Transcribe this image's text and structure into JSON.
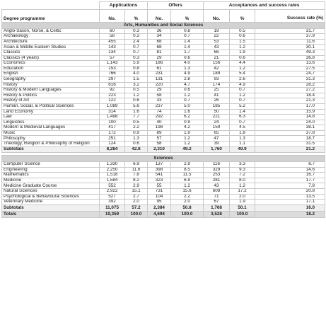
{
  "headers": {
    "group_applications": "Applications",
    "group_offers": "Offers",
    "group_acceptances": "Acceptances and success rates",
    "degree_programme": "Degree programme",
    "no": "No.",
    "pct": "%",
    "success_rate": "Success rate (%)"
  },
  "sections": [
    {
      "title": "Arts, Humanities and Social Sciences",
      "rows": [
        [
          "Anglo-Saxon, Norse, & Celtic",
          "60",
          "0.3",
          "36",
          "0.8",
          "19",
          "0.5",
          "31.7"
        ],
        [
          "Archaeology",
          "58",
          "0.3",
          "34",
          "0.7",
          "22",
          "0.6",
          "37.9"
        ],
        [
          "Architecture",
          "455",
          "2.4",
          "68",
          "1.4",
          "53",
          "1.5",
          "11.6"
        ],
        [
          "Asian & Middle Eastern Studies",
          "143",
          "0.7",
          "68",
          "1.4",
          "43",
          "1.2",
          "30.1"
        ],
        [
          "Classics",
          "134",
          "0.7",
          "81",
          "1.7",
          "66",
          "1.9",
          "49.3"
        ],
        [
          "Classics (4 years)",
          "57",
          "0.3",
          "29",
          "0.6",
          "21",
          "0.6",
          "36.8"
        ],
        [
          "Economics",
          "1,143",
          "5.9",
          "186",
          "4.0",
          "156",
          "4.4",
          "13.6"
        ],
        [
          "Education",
          "153",
          "0.8",
          "61",
          "1.3",
          "42",
          "1.2",
          "27.5"
        ],
        [
          "English",
          "766",
          "4.0",
          "231",
          "4.9",
          "189",
          "5.4",
          "24.7"
        ],
        [
          "Geography",
          "297",
          "1.5",
          "131",
          "2.8",
          "93",
          "2.6",
          "31.3"
        ],
        [
          "History",
          "616",
          "3.2",
          "220",
          "4.7",
          "174",
          "4.9",
          "28.2"
        ],
        [
          "History & Modern Languages",
          "92",
          "0.5",
          "29",
          "0.6",
          "25",
          "0.7",
          "27.2"
        ],
        [
          "History & Politics",
          "223",
          "1.2",
          "58",
          "1.2",
          "41",
          "1.2",
          "18.4"
        ],
        [
          "History of Art",
          "122",
          "0.6",
          "33",
          "0.7",
          "26",
          "0.7",
          "21.3"
        ],
        [
          "Human, Social, & Political Sciences",
          "1,089",
          "5.6",
          "237",
          "5.0",
          "185",
          "5.2",
          "17.0"
        ],
        [
          "Land Economy",
          "314",
          "1.6",
          "74",
          "1.6",
          "50",
          "1.4",
          "15.9"
        ],
        [
          "Law",
          "1,498",
          "7.7",
          "292",
          "6.2",
          "221",
          "6.3",
          "14.8"
        ],
        [
          "Linguistics",
          "100",
          "0.5",
          "40",
          "0.9",
          "24",
          "0.7",
          "24.0"
        ],
        [
          "Modern & Medieval Languages",
          "417",
          "2.2",
          "198",
          "4.2",
          "159",
          "4.5",
          "38.1"
        ],
        [
          "Music",
          "172",
          "0.9",
          "89",
          "1.9",
          "65",
          "1.8",
          "37.8"
        ],
        [
          "Philosophy",
          "251",
          "1.3",
          "57",
          "1.2",
          "47",
          "1.3",
          "18.7"
        ],
        [
          "Theology, Religion & Philosophy of Religion",
          "124",
          "0.6",
          "58",
          "1.2",
          "39",
          "1.1",
          "31.5"
        ]
      ],
      "subtotal": [
        "Subtotals",
        "8,284",
        "42.8",
        "2,310",
        "49.2",
        "1,760",
        "49.9",
        "21.2"
      ]
    },
    {
      "title": "Sciences",
      "rows": [
        [
          "Computer Science",
          "1,330",
          "6.9",
          "137",
          "2.9",
          "116",
          "3.3",
          "8.7"
        ],
        [
          "Engineering",
          "2,250",
          "11.6",
          "398",
          "8.5",
          "329",
          "9.3",
          "14.6"
        ],
        [
          "Mathematics",
          "1,518",
          "7.8",
          "541",
          "11.5",
          "253",
          "7.2",
          "16.7"
        ],
        [
          "Medicine",
          "1,584",
          "8.2",
          "323",
          "6.9",
          "281",
          "8.0",
          "17.7"
        ],
        [
          "Medicine Graduate Course",
          "552",
          "2.9",
          "55",
          "1.2",
          "43",
          "1.2",
          "7.8"
        ],
        [
          "Natural Sciences",
          "2,922",
          "15.1",
          "731",
          "15.6",
          "608",
          "17.2",
          "20.8"
        ],
        [
          "Psychological & Behavioural Sciences",
          "527",
          "2.7",
          "104",
          "2.2",
          "71",
          "2.0",
          "13.5"
        ],
        [
          "Veterinary Medicine",
          "392",
          "2.0",
          "95",
          "2.0",
          "67",
          "1.9",
          "17.1"
        ]
      ],
      "subtotal": [
        "Subtotals",
        "11,075",
        "57.2",
        "2,384",
        "50.8",
        "1,768",
        "50.1",
        "16.0"
      ]
    }
  ],
  "totals": [
    "Totals",
    "19,359",
    "100.0",
    "4,694",
    "100.0",
    "3,528",
    "100.0",
    "18.2"
  ]
}
